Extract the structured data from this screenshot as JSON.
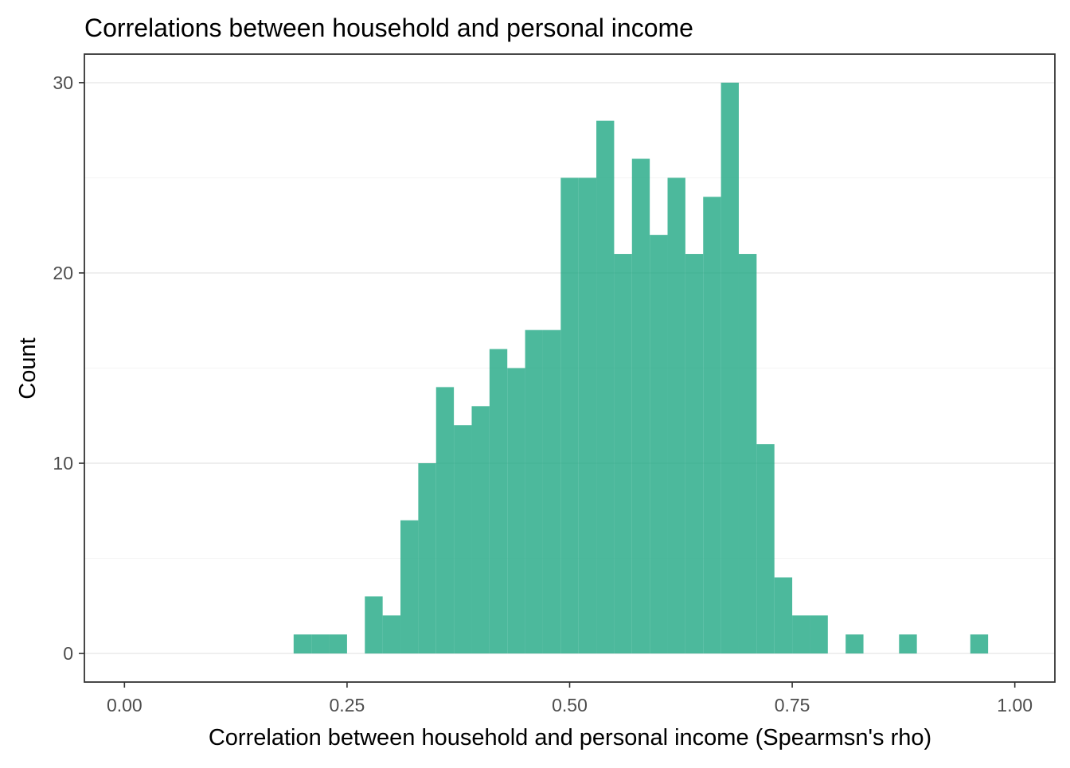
{
  "chart_data": {
    "type": "bar",
    "title": "Correlations between household and personal income",
    "xlabel": "Correlation between household and personal income (Spearmsn's rho)",
    "ylabel": "Count",
    "xlim": [
      -0.045,
      1.045
    ],
    "ylim": [
      -1.5,
      31.5
    ],
    "x_ticks": [
      0.0,
      0.25,
      0.5,
      0.75,
      1.0
    ],
    "x_tick_labels": [
      "0.00",
      "0.25",
      "0.50",
      "0.75",
      "1.00"
    ],
    "y_ticks": [
      0,
      10,
      20,
      30
    ],
    "y_tick_labels": [
      "0",
      "10",
      "20",
      "30"
    ],
    "y_minor_ticks": [
      5,
      15,
      25
    ],
    "grid": true,
    "bin_width": 0.02,
    "bin_starts": [
      0.19,
      0.21,
      0.23,
      0.25,
      0.27,
      0.29,
      0.31,
      0.33,
      0.35,
      0.37,
      0.39,
      0.41,
      0.43,
      0.45,
      0.47,
      0.49,
      0.51,
      0.53,
      0.55,
      0.57,
      0.59,
      0.61,
      0.63,
      0.65,
      0.67,
      0.69,
      0.71,
      0.73,
      0.75,
      0.77,
      0.79,
      0.81,
      0.83,
      0.85,
      0.87,
      0.89,
      0.91,
      0.93,
      0.95
    ],
    "values": [
      1,
      1,
      1,
      0,
      3,
      2,
      7,
      10,
      14,
      12,
      13,
      16,
      15,
      17,
      17,
      25,
      25,
      28,
      21,
      26,
      22,
      25,
      21,
      24,
      30,
      21,
      11,
      4,
      2,
      2,
      0,
      1,
      0,
      0,
      1,
      0,
      0,
      0,
      1
    ],
    "bar_color": "#1fa883",
    "bar_opacity": 0.8
  }
}
